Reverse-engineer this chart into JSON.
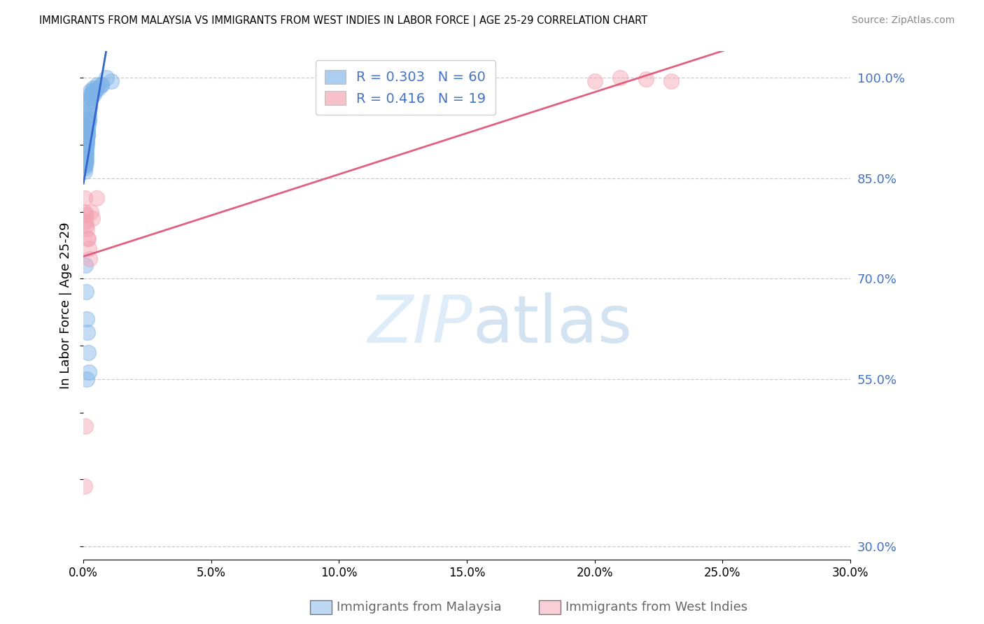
{
  "title": "IMMIGRANTS FROM MALAYSIA VS IMMIGRANTS FROM WEST INDIES IN LABOR FORCE | AGE 25-29 CORRELATION CHART",
  "source": "Source: ZipAtlas.com",
  "ylabel": "In Labor Force | Age 25-29",
  "xmin": 0.0,
  "xmax": 0.3,
  "ymin": 0.28,
  "ymax": 1.04,
  "malaysia_color": "#7eb3e8",
  "west_indies_color": "#f4a0b0",
  "malaysia_line_color": "#3366cc",
  "west_indies_line_color": "#e06080",
  "malaysia_R": 0.303,
  "malaysia_N": 60,
  "west_indies_R": 0.416,
  "west_indies_N": 19,
  "grid_color": "#cccccc",
  "background_color": "#ffffff",
  "legend_label_malaysia": "Immigrants from Malaysia",
  "legend_label_west_indies": "Immigrants from West Indies",
  "yticks": [
    1.0,
    0.85,
    0.7,
    0.55,
    0.3
  ],
  "ytick_labels": [
    "100.0%",
    "85.0%",
    "70.0%",
    "55.0%",
    "30.0%"
  ],
  "xticks": [
    0.0,
    0.05,
    0.1,
    0.15,
    0.2,
    0.25,
    0.3
  ],
  "malaysia_x": [
    0.0003,
    0.0003,
    0.0004,
    0.0005,
    0.0005,
    0.0006,
    0.0007,
    0.0007,
    0.0008,
    0.0008,
    0.0009,
    0.0009,
    0.001,
    0.001,
    0.001,
    0.0011,
    0.0011,
    0.0012,
    0.0012,
    0.0013,
    0.0013,
    0.0014,
    0.0015,
    0.0015,
    0.0016,
    0.0016,
    0.0017,
    0.0018,
    0.0018,
    0.0019,
    0.002,
    0.002,
    0.0021,
    0.0022,
    0.0023,
    0.0024,
    0.0025,
    0.0026,
    0.0027,
    0.0028,
    0.003,
    0.0032,
    0.0035,
    0.0038,
    0.004,
    0.0045,
    0.005,
    0.0055,
    0.006,
    0.007,
    0.0008,
    0.001,
    0.0012,
    0.0015,
    0.0018,
    0.0022,
    0.0012,
    0.007,
    0.009,
    0.011
  ],
  "malaysia_y": [
    0.88,
    0.875,
    0.87,
    0.865,
    0.86,
    0.87,
    0.875,
    0.88,
    0.885,
    0.87,
    0.88,
    0.875,
    0.885,
    0.89,
    0.895,
    0.9,
    0.895,
    0.9,
    0.905,
    0.91,
    0.905,
    0.91,
    0.915,
    0.92,
    0.915,
    0.92,
    0.925,
    0.93,
    0.935,
    0.94,
    0.935,
    0.94,
    0.945,
    0.95,
    0.955,
    0.96,
    0.965,
    0.97,
    0.975,
    0.98,
    0.97,
    0.975,
    0.98,
    0.985,
    0.975,
    0.98,
    0.985,
    0.99,
    0.985,
    0.99,
    0.72,
    0.68,
    0.64,
    0.62,
    0.59,
    0.56,
    0.55,
    0.99,
    1.0,
    0.995
  ],
  "west_indies_x": [
    0.0004,
    0.0005,
    0.0007,
    0.0009,
    0.0011,
    0.0013,
    0.0015,
    0.0018,
    0.0022,
    0.0025,
    0.0005,
    0.0008,
    0.003,
    0.0035,
    0.005,
    0.2,
    0.21,
    0.22,
    0.23
  ],
  "west_indies_y": [
    0.82,
    0.8,
    0.785,
    0.795,
    0.78,
    0.775,
    0.76,
    0.76,
    0.745,
    0.73,
    0.39,
    0.48,
    0.8,
    0.79,
    0.82,
    0.995,
    1.0,
    0.998,
    0.995
  ]
}
